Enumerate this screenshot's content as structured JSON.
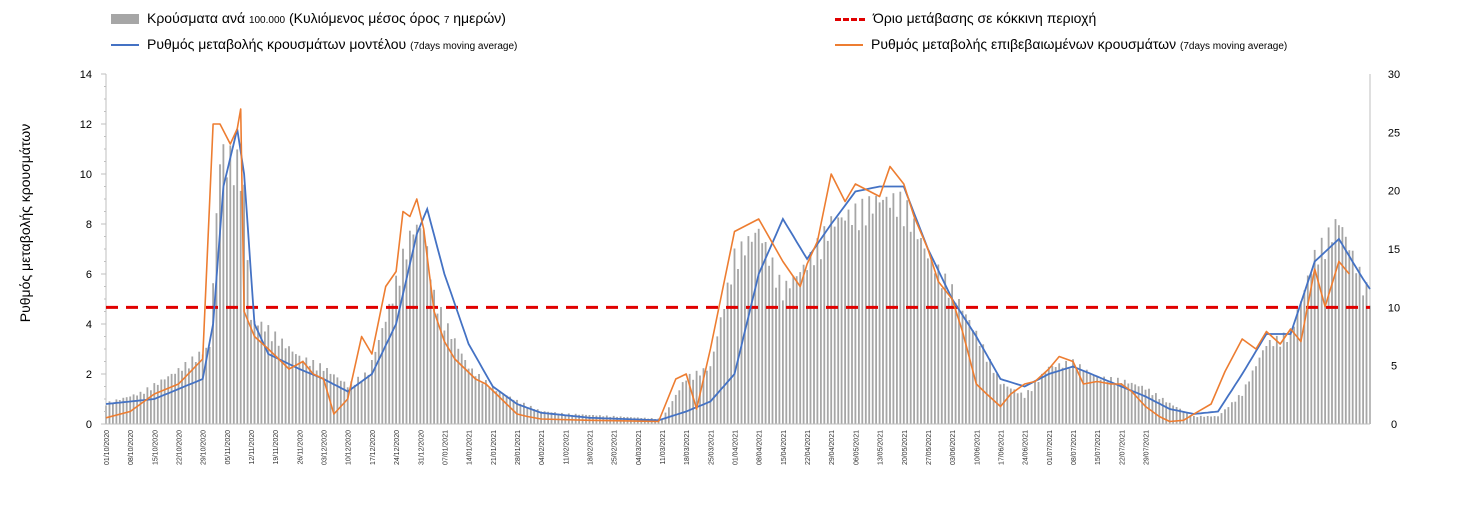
{
  "chart_data": {
    "type": "bar+line",
    "ylabel": "Ρυθμός μεταβολής κρουσμάτων",
    "ylim": [
      0,
      14
    ],
    "y2lim": [
      0,
      30
    ],
    "yticks": [
      0,
      2,
      4,
      6,
      8,
      10,
      12,
      14
    ],
    "y2ticks": [
      0,
      5,
      10,
      15,
      20,
      25,
      30
    ],
    "threshold": 10,
    "legend": {
      "bars": {
        "main": "Κρούσματα ανά ",
        "small1": "100.000",
        "main2": " (Κυλιόμενος μέσος όρος ",
        "small2": "7",
        "main3": " ημερών)"
      },
      "model": {
        "main": "Ρυθμός μεταβολής κρουσμάτων μοντέλου ",
        "small": "(7days moving average)"
      },
      "threshold": {
        "main": "Όριο μετάβασης σε κόκκινη περιοχή"
      },
      "confirmed": {
        "main": "Ρυθμός μεταβολής επιβεβαιωμένων κρουσμάτων ",
        "small": "(7days moving average)"
      }
    },
    "x_labels": [
      "01/10/2020",
      "08/10/2020",
      "15/10/2020",
      "22/10/2020",
      "29/10/2020",
      "05/11/2020",
      "12/11/2020",
      "19/11/2020",
      "26/11/2020",
      "03/12/2020",
      "10/12/2020",
      "17/12/2020",
      "24/12/2020",
      "31/12/2020",
      "07/01/2021",
      "14/01/2021",
      "21/01/2021",
      "28/01/2021",
      "04/02/2021",
      "11/02/2021",
      "18/02/2021",
      "25/02/2021",
      "04/03/2021",
      "11/03/2021",
      "18/03/2021",
      "25/03/2021",
      "01/04/2021",
      "08/04/2021",
      "15/04/2021",
      "22/04/2021",
      "29/04/2021",
      "06/05/2021",
      "13/05/2021",
      "20/05/2021",
      "27/05/2021",
      "03/06/2021",
      "10/06/2021",
      "17/06/2021",
      "24/06/2021",
      "01/07/2021",
      "08/07/2021",
      "15/07/2021",
      "22/07/2021",
      "29/07/2021"
    ],
    "n_days": 303,
    "bars_key_points": [
      [
        0,
        0.8
      ],
      [
        10,
        1.2
      ],
      [
        20,
        2.0
      ],
      [
        25,
        2.5
      ],
      [
        30,
        3
      ],
      [
        33,
        10.5
      ],
      [
        38,
        10.2
      ],
      [
        40,
        9
      ],
      [
        42,
        4
      ],
      [
        46,
        3.8
      ],
      [
        50,
        3.3
      ],
      [
        56,
        2.6
      ],
      [
        63,
        2.2
      ],
      [
        70,
        1.5
      ],
      [
        76,
        2.0
      ],
      [
        82,
        4.5
      ],
      [
        86,
        6.5
      ],
      [
        89,
        7.6
      ],
      [
        92,
        7.6
      ],
      [
        95,
        5
      ],
      [
        98,
        4
      ],
      [
        105,
        2.2
      ],
      [
        112,
        1.4
      ],
      [
        119,
        0.9
      ],
      [
        126,
        0.5
      ],
      [
        133,
        0.4
      ],
      [
        147,
        0.3
      ],
      [
        161,
        0.2
      ],
      [
        168,
        1.8
      ],
      [
        175,
        2.2
      ],
      [
        182,
        6.5
      ],
      [
        189,
        7.5
      ],
      [
        196,
        5.2
      ],
      [
        203,
        6.2
      ],
      [
        210,
        7.8
      ],
      [
        217,
        8.2
      ],
      [
        224,
        8.7
      ],
      [
        231,
        8.6
      ],
      [
        238,
        6.5
      ],
      [
        245,
        5.2
      ],
      [
        252,
        3.5
      ],
      [
        259,
        1.6
      ],
      [
        266,
        1.1
      ],
      [
        273,
        2.2
      ],
      [
        280,
        2.4
      ],
      [
        287,
        1.8
      ],
      [
        294,
        1.7
      ],
      [
        301,
        1.4
      ],
      [
        308,
        0.8
      ],
      [
        315,
        0.3
      ],
      [
        322,
        0.3
      ],
      [
        329,
        1.2
      ],
      [
        336,
        3.1
      ],
      [
        343,
        3.5
      ],
      [
        350,
        6.5
      ],
      [
        357,
        7.9
      ],
      [
        364,
        5.5
      ],
      [
        366,
        5.0
      ]
    ],
    "model_key_points": [
      [
        0,
        0.8
      ],
      [
        14,
        1.0
      ],
      [
        28,
        1.8
      ],
      [
        31,
        4
      ],
      [
        34,
        9.5
      ],
      [
        38,
        11.8
      ],
      [
        40,
        10
      ],
      [
        43,
        4
      ],
      [
        47,
        2.8
      ],
      [
        56,
        2.2
      ],
      [
        63,
        1.8
      ],
      [
        70,
        1.3
      ],
      [
        77,
        2.0
      ],
      [
        84,
        4.0
      ],
      [
        90,
        7.6
      ],
      [
        93,
        8.6
      ],
      [
        98,
        6.0
      ],
      [
        105,
        3.2
      ],
      [
        112,
        1.5
      ],
      [
        119,
        0.8
      ],
      [
        126,
        0.45
      ],
      [
        140,
        0.25
      ],
      [
        160,
        0.15
      ],
      [
        168,
        0.5
      ],
      [
        175,
        0.9
      ],
      [
        182,
        2.0
      ],
      [
        189,
        6.0
      ],
      [
        196,
        8.2
      ],
      [
        203,
        6.6
      ],
      [
        210,
        8.0
      ],
      [
        217,
        9.3
      ],
      [
        224,
        9.5
      ],
      [
        231,
        9.5
      ],
      [
        238,
        7.0
      ],
      [
        245,
        5.0
      ],
      [
        252,
        3.5
      ],
      [
        259,
        1.8
      ],
      [
        266,
        1.5
      ],
      [
        273,
        2.0
      ],
      [
        280,
        2.3
      ],
      [
        287,
        1.9
      ],
      [
        294,
        1.5
      ],
      [
        301,
        1.1
      ],
      [
        308,
        0.6
      ],
      [
        315,
        0.4
      ],
      [
        322,
        0.5
      ],
      [
        329,
        2.0
      ],
      [
        336,
        3.6
      ],
      [
        343,
        3.6
      ],
      [
        350,
        6.5
      ],
      [
        357,
        7.4
      ],
      [
        364,
        5.8
      ],
      [
        366,
        5.4
      ]
    ],
    "confirmed_key_points": [
      [
        0,
        0.25
      ],
      [
        7,
        0.5
      ],
      [
        14,
        1.2
      ],
      [
        21,
        1.6
      ],
      [
        28,
        2.6
      ],
      [
        31,
        12
      ],
      [
        33,
        12.0
      ],
      [
        36,
        11.2
      ],
      [
        38,
        11.8
      ],
      [
        39,
        12.6
      ],
      [
        40,
        4.5
      ],
      [
        43,
        3.5
      ],
      [
        47,
        3.0
      ],
      [
        50,
        2.6
      ],
      [
        53,
        2.2
      ],
      [
        57,
        2.5
      ],
      [
        60,
        2.0
      ],
      [
        63,
        1.8
      ],
      [
        66,
        0.4
      ],
      [
        70,
        1.0
      ],
      [
        74,
        3.5
      ],
      [
        77,
        2.8
      ],
      [
        81,
        5.5
      ],
      [
        84,
        6.1
      ],
      [
        86,
        8.5
      ],
      [
        88,
        8.3
      ],
      [
        90,
        9.0
      ],
      [
        92,
        7.8
      ],
      [
        95,
        4.5
      ],
      [
        98,
        3.3
      ],
      [
        101,
        2.6
      ],
      [
        104,
        2.2
      ],
      [
        107,
        1.8
      ],
      [
        110,
        1.6
      ],
      [
        113,
        1.2
      ],
      [
        116,
        0.8
      ],
      [
        119,
        0.4
      ],
      [
        122,
        0.3
      ],
      [
        126,
        0.2
      ],
      [
        140,
        0.15
      ],
      [
        160,
        0.1
      ],
      [
        165,
        1.8
      ],
      [
        168,
        2.0
      ],
      [
        171,
        0.6
      ],
      [
        175,
        3.0
      ],
      [
        182,
        7.7
      ],
      [
        189,
        8.2
      ],
      [
        196,
        6.5
      ],
      [
        201,
        5.5
      ],
      [
        203,
        6.4
      ],
      [
        206,
        7.3
      ],
      [
        210,
        10.0
      ],
      [
        214,
        8.9
      ],
      [
        217,
        9.6
      ],
      [
        224,
        9.1
      ],
      [
        227,
        10.3
      ],
      [
        231,
        9.6
      ],
      [
        234,
        8.3
      ],
      [
        238,
        7.0
      ],
      [
        241,
        5.7
      ],
      [
        245,
        5.0
      ],
      [
        248,
        3.7
      ],
      [
        252,
        1.6
      ],
      [
        255,
        1.2
      ],
      [
        259,
        0.7
      ],
      [
        262,
        1.2
      ],
      [
        266,
        1.6
      ],
      [
        269,
        1.7
      ],
      [
        273,
        2.2
      ],
      [
        276,
        2.7
      ],
      [
        280,
        2.5
      ],
      [
        283,
        1.6
      ],
      [
        287,
        1.7
      ],
      [
        291,
        1.6
      ],
      [
        294,
        1.6
      ],
      [
        297,
        1.3
      ],
      [
        301,
        0.7
      ],
      [
        305,
        0.3
      ],
      [
        308,
        0.1
      ],
      [
        312,
        0.15
      ],
      [
        315,
        0.4
      ],
      [
        320,
        0.8
      ],
      [
        324,
        2.1
      ],
      [
        329,
        3.4
      ],
      [
        333,
        3.0
      ],
      [
        336,
        3.7
      ],
      [
        340,
        3.2
      ],
      [
        343,
        3.8
      ],
      [
        346,
        3.3
      ],
      [
        350,
        6.2
      ],
      [
        353,
        4.7
      ],
      [
        357,
        6.5
      ],
      [
        360,
        6.0
      ]
    ]
  }
}
